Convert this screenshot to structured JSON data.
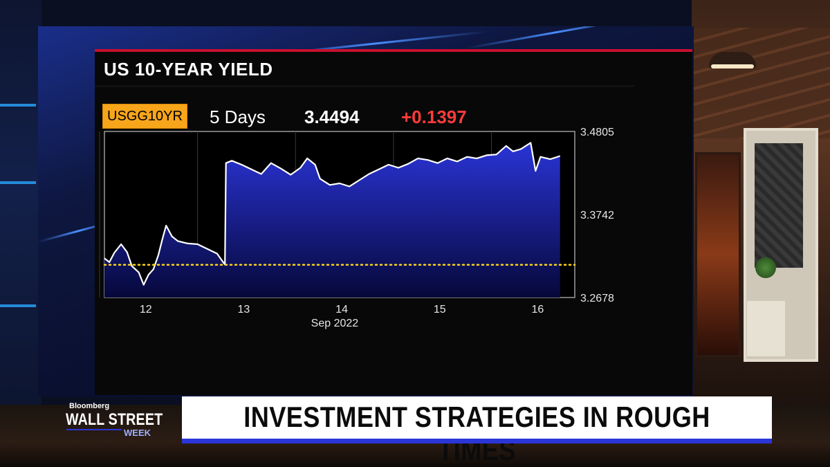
{
  "panel": {
    "title": "US 10-YEAR YIELD",
    "ticker": "USGG10YR",
    "period": "5 Days",
    "last_value": "3.4494",
    "change": "+0.1397"
  },
  "colors": {
    "ticker_bg": "#f7a51b",
    "change": "#ff3b3b",
    "line": "#ffffff",
    "fill_top": "#2a34d6",
    "fill_bottom": "#06083a",
    "reference_line": "#ffd51a",
    "title_rule": "#c8102e",
    "lower_third_bar": "#2a36d8"
  },
  "chart_data": {
    "type": "area",
    "title": "US 10-YEAR YIELD",
    "x_ticks": [
      "12",
      "13",
      "14",
      "15",
      "16"
    ],
    "x_sublabel": "Sep 2022",
    "y_ticks": [
      "3.4805",
      "3.3742",
      "3.2678"
    ],
    "ylim": [
      3.2678,
      3.4805
    ],
    "reference_line": 3.3097,
    "grid": true,
    "series": [
      {
        "values": [
          [
            11.55,
            3.318
          ],
          [
            11.6,
            3.313
          ],
          [
            11.65,
            3.325
          ],
          [
            11.72,
            3.336
          ],
          [
            11.78,
            3.326
          ],
          [
            11.83,
            3.308
          ],
          [
            11.9,
            3.3
          ],
          [
            11.95,
            3.284
          ],
          [
            12.0,
            3.297
          ],
          [
            12.05,
            3.304
          ],
          [
            12.1,
            3.322
          ],
          [
            12.14,
            3.342
          ],
          [
            12.18,
            3.36
          ],
          [
            12.24,
            3.346
          ],
          [
            12.3,
            3.34
          ],
          [
            12.4,
            3.337
          ],
          [
            12.5,
            3.336
          ],
          [
            12.6,
            3.33
          ],
          [
            12.7,
            3.324
          ],
          [
            12.75,
            3.315
          ],
          [
            12.78,
            3.31
          ],
          [
            12.79,
            3.44
          ],
          [
            12.85,
            3.443
          ],
          [
            12.95,
            3.438
          ],
          [
            13.05,
            3.432
          ],
          [
            13.15,
            3.426
          ],
          [
            13.25,
            3.44
          ],
          [
            13.35,
            3.433
          ],
          [
            13.45,
            3.425
          ],
          [
            13.55,
            3.434
          ],
          [
            13.62,
            3.446
          ],
          [
            13.7,
            3.438
          ],
          [
            13.75,
            3.42
          ],
          [
            13.85,
            3.412
          ],
          [
            13.95,
            3.414
          ],
          [
            14.05,
            3.41
          ],
          [
            14.15,
            3.418
          ],
          [
            14.25,
            3.426
          ],
          [
            14.35,
            3.432
          ],
          [
            14.45,
            3.438
          ],
          [
            14.55,
            3.434
          ],
          [
            14.65,
            3.439
          ],
          [
            14.75,
            3.446
          ],
          [
            14.85,
            3.444
          ],
          [
            14.95,
            3.44
          ],
          [
            15.05,
            3.446
          ],
          [
            15.15,
            3.442
          ],
          [
            15.25,
            3.448
          ],
          [
            15.35,
            3.446
          ],
          [
            15.45,
            3.45
          ],
          [
            15.55,
            3.451
          ],
          [
            15.65,
            3.462
          ],
          [
            15.72,
            3.455
          ],
          [
            15.8,
            3.458
          ],
          [
            15.9,
            3.466
          ],
          [
            15.95,
            3.43
          ],
          [
            16.0,
            3.448
          ],
          [
            16.1,
            3.445
          ],
          [
            16.2,
            3.449
          ]
        ]
      }
    ]
  },
  "lower_third": {
    "headline": "INVESTMENT STRATEGIES IN ROUGH TIMES",
    "show_brand": "Bloomberg",
    "show_name": "WALL STREET",
    "show_sub": "WEEK"
  }
}
